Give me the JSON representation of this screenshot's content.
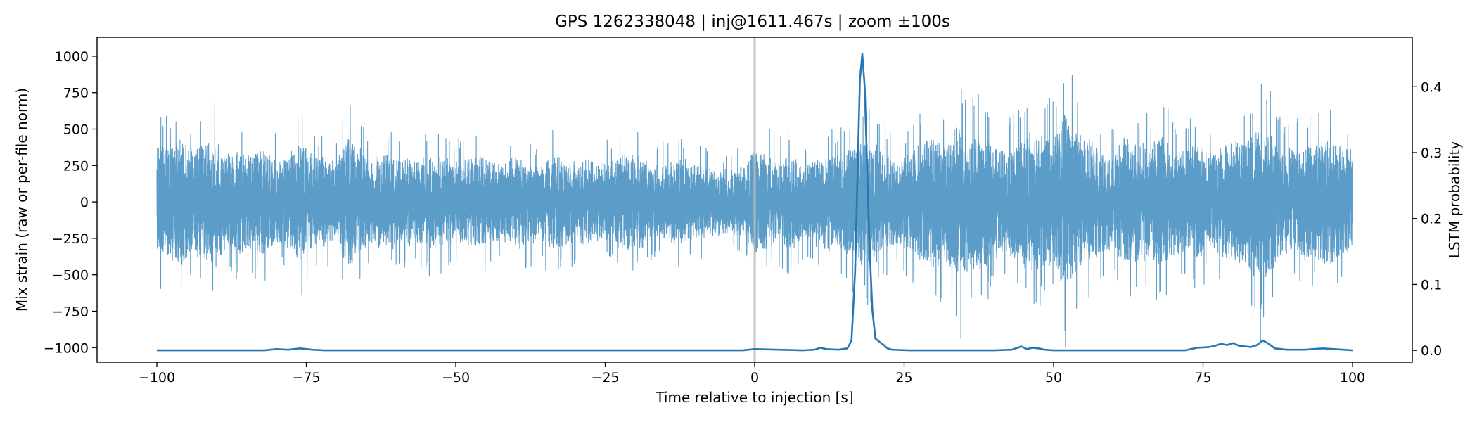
{
  "chart_data": {
    "type": "line",
    "title": "GPS 1262338048 | inj@1611.467s | zoom ±100s",
    "xlabel": "Time relative to injection [s]",
    "ylabel": "Mix strain (raw or per-file norm)",
    "y2label": "LSTM probability",
    "xlim": [
      -110,
      110
    ],
    "ylim": [
      -1100,
      1130
    ],
    "y2lim": [
      -0.018,
      0.475
    ],
    "x_ticks": [
      -100,
      -75,
      -50,
      -25,
      0,
      25,
      50,
      75,
      100
    ],
    "x_tick_labels": [
      "−100",
      "−75",
      "−50",
      "−25",
      "0",
      "25",
      "50",
      "75",
      "100"
    ],
    "y_ticks": [
      -1000,
      -750,
      -500,
      -250,
      0,
      250,
      500,
      750,
      1000
    ],
    "y_tick_labels": [
      "−1000",
      "−750",
      "−500",
      "−250",
      "0",
      "250",
      "500",
      "750",
      "1000"
    ],
    "y2_ticks": [
      0.0,
      0.1,
      0.2,
      0.3,
      0.4
    ],
    "y2_tick_labels": [
      "0.0",
      "0.1",
      "0.2",
      "0.3",
      "0.4"
    ],
    "grid": false,
    "injection_marker_x": 0,
    "colors": {
      "strain": "#5b9cc9",
      "probability": "#2677b4",
      "marker": "#bdbdbd"
    },
    "series": [
      {
        "axis": "left",
        "envelope": [
          [
            -100,
            650
          ],
          [
            -98,
            620
          ],
          [
            -96,
            690
          ],
          [
            -94,
            560
          ],
          [
            -92,
            640
          ],
          [
            -90,
            700
          ],
          [
            -88,
            500
          ],
          [
            -86,
            560
          ],
          [
            -84,
            520
          ],
          [
            -82,
            600
          ],
          [
            -80,
            450
          ],
          [
            -78,
            500
          ],
          [
            -76,
            650
          ],
          [
            -74,
            500
          ],
          [
            -72,
            480
          ],
          [
            -70,
            420
          ],
          [
            -68,
            720
          ],
          [
            -66,
            560
          ],
          [
            -64,
            450
          ],
          [
            -62,
            540
          ],
          [
            -60,
            480
          ],
          [
            -58,
            500
          ],
          [
            -56,
            450
          ],
          [
            -54,
            520
          ],
          [
            -52,
            500
          ],
          [
            -50,
            440
          ],
          [
            -48,
            480
          ],
          [
            -46,
            520
          ],
          [
            -44,
            460
          ],
          [
            -42,
            420
          ],
          [
            -40,
            500
          ],
          [
            -38,
            460
          ],
          [
            -36,
            400
          ],
          [
            -34,
            520
          ],
          [
            -32,
            460
          ],
          [
            -30,
            420
          ],
          [
            -28,
            460
          ],
          [
            -26,
            450
          ],
          [
            -24,
            420
          ],
          [
            -22,
            520
          ],
          [
            -20,
            540
          ],
          [
            -18,
            440
          ],
          [
            -16,
            400
          ],
          [
            -14,
            450
          ],
          [
            -12,
            460
          ],
          [
            -10,
            420
          ],
          [
            -8,
            380
          ],
          [
            -6,
            350
          ],
          [
            -4,
            340
          ],
          [
            -2,
            380
          ],
          [
            0,
            580
          ],
          [
            2,
            520
          ],
          [
            4,
            460
          ],
          [
            6,
            520
          ],
          [
            8,
            400
          ],
          [
            10,
            460
          ],
          [
            12,
            540
          ],
          [
            14,
            500
          ],
          [
            16,
            580
          ],
          [
            18,
            700
          ],
          [
            20,
            680
          ],
          [
            22,
            530
          ],
          [
            24,
            450
          ],
          [
            26,
            520
          ],
          [
            28,
            680
          ],
          [
            30,
            700
          ],
          [
            32,
            650
          ],
          [
            34,
            860
          ],
          [
            36,
            750
          ],
          [
            38,
            740
          ],
          [
            40,
            620
          ],
          [
            42,
            580
          ],
          [
            44,
            640
          ],
          [
            46,
            760
          ],
          [
            48,
            720
          ],
          [
            50,
            700
          ],
          [
            52,
            1020
          ],
          [
            54,
            740
          ],
          [
            56,
            680
          ],
          [
            58,
            560
          ],
          [
            60,
            500
          ],
          [
            62,
            720
          ],
          [
            64,
            640
          ],
          [
            66,
            620
          ],
          [
            68,
            740
          ],
          [
            70,
            600
          ],
          [
            72,
            580
          ],
          [
            74,
            640
          ],
          [
            76,
            520
          ],
          [
            78,
            620
          ],
          [
            80,
            680
          ],
          [
            82,
            640
          ],
          [
            84,
            840
          ],
          [
            86,
            820
          ],
          [
            88,
            580
          ],
          [
            90,
            560
          ],
          [
            92,
            640
          ],
          [
            94,
            620
          ],
          [
            96,
            720
          ],
          [
            98,
            600
          ],
          [
            100,
            560
          ]
        ]
      },
      {
        "axis": "right",
        "points": [
          [
            -100,
            0.0
          ],
          [
            -82,
            0.0
          ],
          [
            -80,
            0.002
          ],
          [
            -78,
            0.001
          ],
          [
            -76,
            0.003
          ],
          [
            -74,
            0.001
          ],
          [
            -72,
            0.0
          ],
          [
            -50,
            0.0
          ],
          [
            -10,
            0.0
          ],
          [
            -2,
            0.0
          ],
          [
            0,
            0.002
          ],
          [
            4,
            0.001
          ],
          [
            8,
            0.0
          ],
          [
            10,
            0.001
          ],
          [
            11,
            0.004
          ],
          [
            12,
            0.002
          ],
          [
            14,
            0.001
          ],
          [
            15.5,
            0.003
          ],
          [
            16.2,
            0.015
          ],
          [
            16.8,
            0.12
          ],
          [
            17.3,
            0.3
          ],
          [
            17.6,
            0.41
          ],
          [
            18.0,
            0.45
          ],
          [
            18.4,
            0.4
          ],
          [
            18.8,
            0.28
          ],
          [
            19.2,
            0.16
          ],
          [
            19.7,
            0.06
          ],
          [
            20.2,
            0.018
          ],
          [
            21,
            0.012
          ],
          [
            21.6,
            0.008
          ],
          [
            22.2,
            0.003
          ],
          [
            23,
            0.001
          ],
          [
            26,
            0.0
          ],
          [
            40,
            0.0
          ],
          [
            43,
            0.001
          ],
          [
            44,
            0.004
          ],
          [
            44.6,
            0.006
          ],
          [
            45.5,
            0.002
          ],
          [
            46.5,
            0.004
          ],
          [
            47.5,
            0.003
          ],
          [
            48.5,
            0.001
          ],
          [
            50,
            0.0
          ],
          [
            60,
            0.0
          ],
          [
            72,
            0.0
          ],
          [
            74,
            0.004
          ],
          [
            76,
            0.005
          ],
          [
            77,
            0.007
          ],
          [
            78,
            0.01
          ],
          [
            79,
            0.008
          ],
          [
            80,
            0.011
          ],
          [
            81,
            0.007
          ],
          [
            82,
            0.006
          ],
          [
            83,
            0.005
          ],
          [
            84,
            0.008
          ],
          [
            85,
            0.015
          ],
          [
            86,
            0.01
          ],
          [
            87,
            0.003
          ],
          [
            89,
            0.001
          ],
          [
            92,
            0.001
          ],
          [
            95,
            0.003
          ],
          [
            97,
            0.002
          ],
          [
            100,
            0.0
          ]
        ]
      }
    ]
  }
}
